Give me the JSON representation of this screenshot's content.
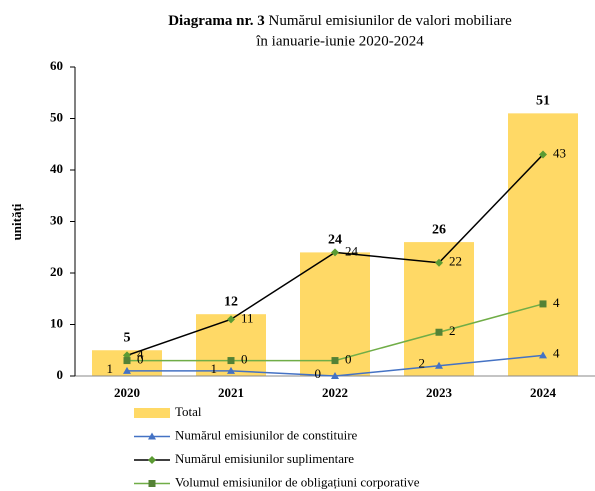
{
  "chart_data": {
    "type": "bar",
    "title_prefix": "Diagrama nr. 3",
    "title": "Numărul emisiunilor de valori mobiliare",
    "title_line2": "în ianuarie-iunie 2020-2024",
    "ylabel": "unități",
    "categories": [
      "2020",
      "2021",
      "2022",
      "2023",
      "2024"
    ],
    "ylim": [
      0,
      60
    ],
    "yticks": [
      0,
      10,
      20,
      30,
      40,
      50,
      60
    ],
    "y2lim": [
      -1.09,
      20.73
    ],
    "series": [
      {
        "name": "Total",
        "type": "bar",
        "color": "#FFD966",
        "label_color": "#C55A11",
        "values": [
          5,
          12,
          24,
          26,
          51
        ]
      },
      {
        "name": "Numărul emisiunilor de constituire",
        "type": "line",
        "color": "#4472C4",
        "marker": "triangle",
        "label_color": "#4472C4",
        "values": [
          1,
          1,
          0,
          2,
          4
        ]
      },
      {
        "name": "Numărul emisiunilor suplimentare",
        "type": "line",
        "color": "#000000",
        "marker_color": "#5B9B33",
        "marker": "diamond",
        "label_color": "#000000",
        "values": [
          4,
          11,
          24,
          22,
          43
        ]
      },
      {
        "name": "Volumul emisiunilor de obligațiuni corporative",
        "type": "line",
        "axis": "y2",
        "color": "#70AD47",
        "marker_color": "#548235",
        "marker": "square",
        "label_color": "#000000",
        "values": [
          0,
          0,
          0,
          2,
          4
        ]
      }
    ]
  }
}
